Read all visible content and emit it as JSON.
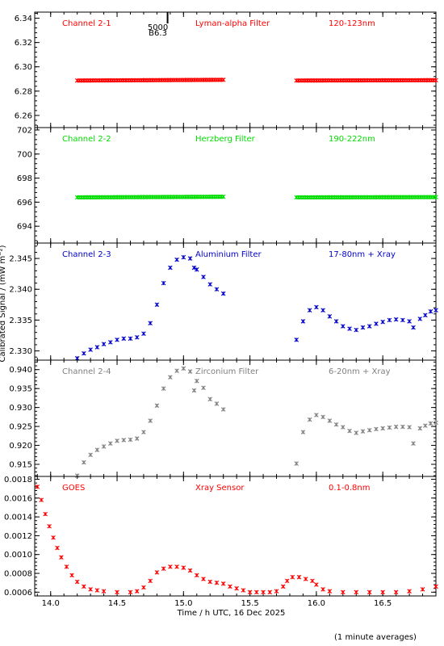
{
  "chart_data": {
    "type": "scatter",
    "marker": "x-star",
    "shared_x": {
      "xlabel": "Time / h UTC, 16 Dec 2025",
      "xlim": [
        13.88,
        16.9
      ],
      "xticks": [
        14.0,
        14.5,
        15.0,
        15.5,
        16.0,
        16.5
      ],
      "xtick_labels": [
        "14.0",
        "14.5",
        "15.0",
        "15.5",
        "16.0",
        "16.5"
      ]
    },
    "ylabel": "Calibrated Signal / (mW m⁻²)",
    "footnote": "(1 minute averages)",
    "overlay_marker": {
      "x": 14.88,
      "labels": [
        "5000",
        "B6.3"
      ]
    },
    "panels": [
      {
        "id": "ch2-1",
        "channel": "Channel 2-1",
        "filter": "Lyman-alpha Filter",
        "band": "120-123nm",
        "color": "#ff0000",
        "ylim": [
          6.25,
          6.345
        ],
        "yticks": [
          6.26,
          6.28,
          6.3,
          6.32,
          6.34
        ],
        "ytick_labels": [
          "6.26",
          "6.28",
          "6.30",
          "6.32",
          "6.34"
        ],
        "segments": [
          {
            "x": [
              14.2,
              15.3
            ],
            "y": [
              6.2887,
              6.2893
            ]
          },
          {
            "x": [
              15.85,
              16.9
            ],
            "y": [
              6.2887,
              6.289
            ]
          }
        ]
      },
      {
        "id": "ch2-2",
        "channel": "Channel 2-2",
        "filter": "Herzberg Filter",
        "band": "190-222nm",
        "color": "#00dd00",
        "ylim": [
          692.6,
          702.2
        ],
        "yticks": [
          694,
          696,
          698,
          700,
          702
        ],
        "ytick_labels": [
          "694",
          "696",
          "698",
          "700",
          "702"
        ],
        "segments": [
          {
            "x": [
              14.2,
              15.3
            ],
            "y": [
              696.4,
              696.45
            ]
          },
          {
            "x": [
              15.85,
              16.9
            ],
            "y": [
              696.4,
              696.42
            ]
          }
        ]
      },
      {
        "id": "ch2-3",
        "channel": "Channel 2-3",
        "filter": "Aluminium Filter",
        "band": "17-80nm + Xray",
        "color": "#0000cc",
        "ylim": [
          2.3285,
          2.3475
        ],
        "yticks": [
          2.33,
          2.335,
          2.34,
          2.345
        ],
        "ytick_labels": [
          "2.330",
          "2.335",
          "2.340",
          "2.345"
        ],
        "points": [
          [
            14.2,
            2.3288
          ],
          [
            14.25,
            2.3296
          ],
          [
            14.3,
            2.3302
          ],
          [
            14.35,
            2.3306
          ],
          [
            14.4,
            2.3311
          ],
          [
            14.45,
            2.3314
          ],
          [
            14.5,
            2.3318
          ],
          [
            14.55,
            2.332
          ],
          [
            14.6,
            2.332
          ],
          [
            14.65,
            2.3322
          ],
          [
            14.7,
            2.3328
          ],
          [
            14.75,
            2.3345
          ],
          [
            14.8,
            2.3375
          ],
          [
            14.85,
            2.341
          ],
          [
            14.9,
            2.3435
          ],
          [
            14.95,
            2.3448
          ],
          [
            15.0,
            2.3452
          ],
          [
            15.05,
            2.345
          ],
          [
            15.08,
            2.3435
          ],
          [
            15.1,
            2.3432
          ],
          [
            15.15,
            2.342
          ],
          [
            15.2,
            2.3408
          ],
          [
            15.25,
            2.34
          ],
          [
            15.3,
            2.3393
          ],
          [
            15.85,
            2.3318
          ],
          [
            15.9,
            2.3348
          ],
          [
            15.95,
            2.3366
          ],
          [
            16.0,
            2.3371
          ],
          [
            16.05,
            2.3366
          ],
          [
            16.1,
            2.3356
          ],
          [
            16.15,
            2.3348
          ],
          [
            16.2,
            2.334
          ],
          [
            16.25,
            2.3336
          ],
          [
            16.3,
            2.3334
          ],
          [
            16.35,
            2.3338
          ],
          [
            16.4,
            2.334
          ],
          [
            16.45,
            2.3344
          ],
          [
            16.5,
            2.3347
          ],
          [
            16.55,
            2.335
          ],
          [
            16.6,
            2.3351
          ],
          [
            16.65,
            2.335
          ],
          [
            16.7,
            2.3348
          ],
          [
            16.73,
            2.3338
          ],
          [
            16.78,
            2.3352
          ],
          [
            16.82,
            2.3358
          ],
          [
            16.86,
            2.3364
          ],
          [
            16.9,
            2.3366
          ]
        ]
      },
      {
        "id": "ch2-4",
        "channel": "Channel 2-4",
        "filter": "Zirconium Filter",
        "band": "6-20nm + Xray",
        "color": "#808080",
        "ylim": [
          0.9118,
          0.9425
        ],
        "yticks": [
          0.915,
          0.92,
          0.925,
          0.93,
          0.935,
          0.94
        ],
        "ytick_labels": [
          "0.915",
          "0.920",
          "0.925",
          "0.930",
          "0.935",
          "0.940"
        ],
        "points": [
          [
            14.2,
            0.912
          ],
          [
            14.25,
            0.9155
          ],
          [
            14.3,
            0.9175
          ],
          [
            14.35,
            0.9188
          ],
          [
            14.4,
            0.9197
          ],
          [
            14.45,
            0.9205
          ],
          [
            14.5,
            0.9212
          ],
          [
            14.55,
            0.9214
          ],
          [
            14.6,
            0.9215
          ],
          [
            14.65,
            0.9218
          ],
          [
            14.7,
            0.9235
          ],
          [
            14.75,
            0.9265
          ],
          [
            14.8,
            0.9305
          ],
          [
            14.85,
            0.935
          ],
          [
            14.9,
            0.938
          ],
          [
            14.95,
            0.9397
          ],
          [
            15.0,
            0.9403
          ],
          [
            15.05,
            0.9395
          ],
          [
            15.08,
            0.9345
          ],
          [
            15.1,
            0.937
          ],
          [
            15.15,
            0.9352
          ],
          [
            15.2,
            0.9322
          ],
          [
            15.25,
            0.931
          ],
          [
            15.3,
            0.9295
          ],
          [
            15.85,
            0.9152
          ],
          [
            15.9,
            0.9235
          ],
          [
            15.95,
            0.9268
          ],
          [
            16.0,
            0.928
          ],
          [
            16.05,
            0.9275
          ],
          [
            16.1,
            0.9265
          ],
          [
            16.15,
            0.9255
          ],
          [
            16.2,
            0.9248
          ],
          [
            16.25,
            0.9238
          ],
          [
            16.3,
            0.9233
          ],
          [
            16.35,
            0.9237
          ],
          [
            16.4,
            0.924
          ],
          [
            16.45,
            0.9243
          ],
          [
            16.5,
            0.9245
          ],
          [
            16.55,
            0.9247
          ],
          [
            16.6,
            0.9249
          ],
          [
            16.65,
            0.9249
          ],
          [
            16.7,
            0.9248
          ],
          [
            16.73,
            0.9205
          ],
          [
            16.78,
            0.9245
          ],
          [
            16.82,
            0.9252
          ],
          [
            16.86,
            0.9258
          ],
          [
            16.9,
            0.926
          ]
        ]
      },
      {
        "id": "goes",
        "channel": "GOES",
        "filter": "Xray Sensor",
        "band": "0.1-0.8nm",
        "color": "#ff0000",
        "ylim": [
          0.00056,
          0.00183
        ],
        "yticks": [
          0.0006,
          0.0008,
          0.001,
          0.0012,
          0.0014,
          0.0016,
          0.0018
        ],
        "ytick_labels": [
          "0.0006",
          "0.0008",
          "0.0010",
          "0.0012",
          "0.0014",
          "0.0016",
          "0.0018"
        ],
        "points": [
          [
            13.9,
            0.00172
          ],
          [
            13.93,
            0.00158
          ],
          [
            13.96,
            0.00143
          ],
          [
            13.99,
            0.0013
          ],
          [
            14.02,
            0.00118
          ],
          [
            14.05,
            0.00107
          ],
          [
            14.08,
            0.00097
          ],
          [
            14.12,
            0.00087
          ],
          [
            14.16,
            0.00078
          ],
          [
            14.2,
            0.00071
          ],
          [
            14.25,
            0.00066
          ],
          [
            14.3,
            0.00063
          ],
          [
            14.35,
            0.00062
          ],
          [
            14.4,
            0.00061
          ],
          [
            14.5,
            0.0006
          ],
          [
            14.6,
            0.0006
          ],
          [
            14.65,
            0.00061
          ],
          [
            14.7,
            0.00065
          ],
          [
            14.75,
            0.00072
          ],
          [
            14.8,
            0.00081
          ],
          [
            14.85,
            0.00085
          ],
          [
            14.9,
            0.00087
          ],
          [
            14.95,
            0.00087
          ],
          [
            15.0,
            0.00086
          ],
          [
            15.05,
            0.00083
          ],
          [
            15.1,
            0.00078
          ],
          [
            15.15,
            0.00074
          ],
          [
            15.2,
            0.00071
          ],
          [
            15.25,
            0.0007
          ],
          [
            15.3,
            0.00069
          ],
          [
            15.35,
            0.00066
          ],
          [
            15.4,
            0.00064
          ],
          [
            15.45,
            0.00062
          ],
          [
            15.5,
            0.0006
          ],
          [
            15.55,
            0.0006
          ],
          [
            15.6,
            0.0006
          ],
          [
            15.65,
            0.0006
          ],
          [
            15.7,
            0.00061
          ],
          [
            15.75,
            0.00066
          ],
          [
            15.78,
            0.00072
          ],
          [
            15.82,
            0.00076
          ],
          [
            15.87,
            0.00076
          ],
          [
            15.92,
            0.00074
          ],
          [
            15.97,
            0.00072
          ],
          [
            16.0,
            0.00068
          ],
          [
            16.05,
            0.00063
          ],
          [
            16.1,
            0.00061
          ],
          [
            16.2,
            0.0006
          ],
          [
            16.3,
            0.0006
          ],
          [
            16.4,
            0.0006
          ],
          [
            16.5,
            0.0006
          ],
          [
            16.6,
            0.0006
          ],
          [
            16.7,
            0.00061
          ],
          [
            16.8,
            0.00063
          ],
          [
            16.9,
            0.00066
          ]
        ]
      }
    ]
  }
}
